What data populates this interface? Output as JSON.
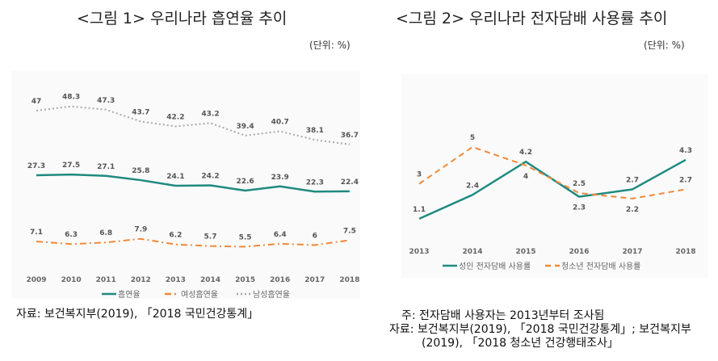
{
  "chart_data": [
    {
      "type": "line",
      "title": "<그림 1> 우리나라 흡연율 추이",
      "unit": "(단위: %)",
      "x": [
        "2009",
        "2010",
        "2011",
        "2012",
        "2013",
        "2014",
        "2015",
        "2016",
        "2017",
        "2018"
      ],
      "series": [
        {
          "name": "흡연율",
          "color": "#1f8a80",
          "style": "solid",
          "values": [
            27.3,
            27.5,
            27.1,
            25.8,
            24.1,
            24.2,
            22.6,
            23.9,
            22.3,
            22.4
          ],
          "labels": [
            "27.3",
            "27.5",
            "27.1",
            "25.8",
            "24.1",
            "24.2",
            "22.6",
            "23.9",
            "22.3",
            "22.4"
          ]
        },
        {
          "name": "여성흡연율",
          "color": "#f0883a",
          "style": "dashdot",
          "values": [
            7.1,
            6.3,
            6.8,
            7.9,
            6.2,
            5.7,
            5.5,
            6.4,
            6.0,
            7.5
          ],
          "labels": [
            "7.1",
            "6.3",
            "6.8",
            "7.9",
            "6.2",
            "5.7",
            "5.5",
            "6.4",
            "6",
            "7.5"
          ]
        },
        {
          "name": "남성흡연율",
          "color": "#a8a8a8",
          "style": "dotted",
          "values": [
            47,
            48.3,
            47.3,
            43.7,
            42.2,
            43.2,
            39.4,
            40.7,
            38.1,
            36.7
          ],
          "labels": [
            "47",
            "48.3",
            "47.3",
            "43.7",
            "42.2",
            "43.2",
            "39.4",
            "40.7",
            "38.1",
            "36.7"
          ]
        }
      ],
      "source": "자료: 보건복지부(2019), 「2018 국민건강통계」"
    },
    {
      "type": "line",
      "title": "<그림 2> 우리나라 전자담배 사용률 추이",
      "unit": "(단위: %)",
      "x": [
        "2013",
        "2014",
        "2015",
        "2016",
        "2017",
        "2018"
      ],
      "series": [
        {
          "name": "성인 전자담배 사용률",
          "color": "#1f8a80",
          "style": "solid",
          "values": [
            1.1,
            2.4,
            4.2,
            2.3,
            2.7,
            4.3
          ],
          "labels": [
            "1.1",
            "2.4",
            "4.2",
            "2.3",
            "2.7",
            "4.3"
          ],
          "label_pos": [
            "above",
            "above",
            "above",
            "below",
            "above",
            "above"
          ]
        },
        {
          "name": "청소년 전자담배 사용률",
          "color": "#f0883a",
          "style": "dashed",
          "values": [
            3,
            5,
            4,
            2.5,
            2.2,
            2.7
          ],
          "labels": [
            "3",
            "5",
            "4",
            "2.5",
            "2.2",
            "2.7"
          ],
          "label_pos": [
            "above",
            "above",
            "below",
            "above",
            "below",
            "above"
          ]
        }
      ],
      "note": "주: 전자담배 사용자는 2013년부터 조사됨",
      "source_line1": "자료: 보건복지부(2019), 「2018 국민건강통계」; 보건복지부",
      "source_line2": "(2019), 「2018 청소년 건강행태조사」"
    }
  ]
}
